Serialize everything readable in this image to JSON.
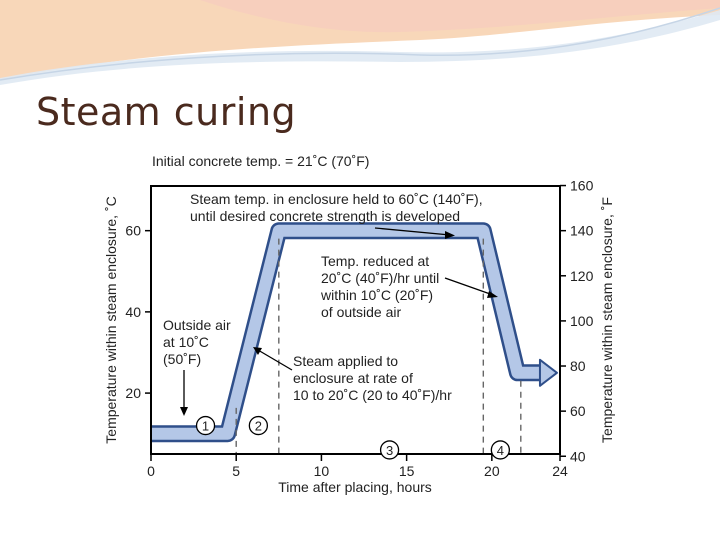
{
  "slide": {
    "title": "Steam curing"
  },
  "colors": {
    "curve_fill": "#b4c7e7",
    "curve_stroke": "#2f4f8a",
    "axis": "#000000",
    "banner_orange": "#f2b680",
    "banner_blue": "#dfe9f3"
  },
  "chart_data": {
    "type": "line",
    "title": "Initial concrete temp. = 21˚C (70˚F)",
    "xlabel": "Time after placing, hours",
    "ylabel": "Temperature within steam enclosure, ˚C",
    "ylabel_right": "Temperature within steam enclosure, ˚F",
    "xlim": [
      0,
      24
    ],
    "ylim": [
      5,
      71
    ],
    "ylim_right_F": [
      40,
      160
    ],
    "x_ticks": [
      "0",
      "5",
      "10",
      "15",
      "20",
      "24"
    ],
    "y_ticks_left": [
      "20",
      "40",
      "60"
    ],
    "y_ticks_right": [
      "40",
      "60",
      "80",
      "100",
      "120",
      "140",
      "160"
    ],
    "grid": false,
    "series": [
      {
        "x": [
          0,
          4.5,
          7.5,
          19.5,
          21.5,
          23
        ],
        "y": [
          10,
          10,
          60,
          60,
          25,
          25
        ]
      }
    ],
    "stage_boundaries_hours": [
      5,
      7.5,
      19.5,
      21.7
    ],
    "stage_markers": [
      {
        "label": "1",
        "x": 3.2,
        "y": 12
      },
      {
        "label": "2",
        "x": 6.3,
        "y": 12
      },
      {
        "label": "3",
        "x": 14,
        "y": 6
      },
      {
        "label": "4",
        "x": 20.5,
        "y": 6
      }
    ],
    "annotations": {
      "hold": [
        "Steam temp. in enclosure held to 60˚C (140˚F),",
        "until desired concrete strength is developed"
      ],
      "reduce": [
        "Temp. reduced at",
        "20˚C (40˚F)/hr until",
        "within 10˚C (20˚F)",
        "of outside air"
      ],
      "outside": [
        "Outside air",
        "at 10˚C",
        "(50˚F)"
      ],
      "applied": [
        "Steam applied to",
        "enclosure at rate of",
        "10 to 20˚C (20 to 40˚F)/hr"
      ]
    }
  }
}
